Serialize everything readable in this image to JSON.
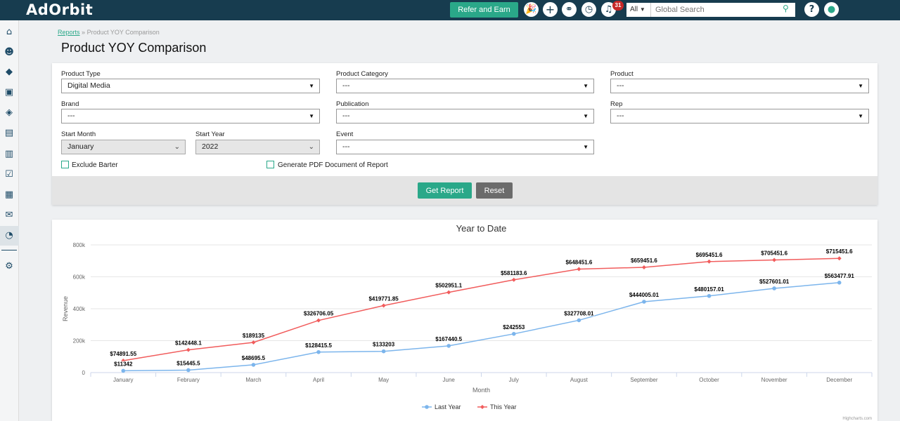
{
  "app": {
    "logo": "AdOrbit",
    "refer_label": "Refer and Earn",
    "notifications_count": "31",
    "search_scope": "All",
    "search_placeholder": "Global Search",
    "accent_color": "#2aa889",
    "header_color": "#173c4f"
  },
  "topbar_icons": [
    "party-icon",
    "plus-icon",
    "link-icon",
    "clock-icon",
    "bell-icon",
    "help-icon",
    "user-icon"
  ],
  "sidebar": {
    "items": [
      "home-icon",
      "contacts-icon",
      "handshake-icon",
      "media-icon",
      "tag-icon",
      "document-icon",
      "finance-icon",
      "clipboard-icon",
      "word-doc-icon",
      "mail-icon",
      "reports-icon",
      "settings-icon"
    ],
    "active": "reports-icon"
  },
  "breadcrumb": {
    "link": "Reports",
    "separator": "»",
    "current": "Product YOY Comparison"
  },
  "page_title": "Product YOY Comparison",
  "filters": {
    "product_type": {
      "label": "Product Type",
      "value": "Digital Media"
    },
    "product_category": {
      "label": "Product Category",
      "value": "---"
    },
    "product": {
      "label": "Product",
      "value": "---"
    },
    "brand": {
      "label": "Brand",
      "value": "---"
    },
    "publication": {
      "label": "Publication",
      "value": "---"
    },
    "rep": {
      "label": "Rep",
      "value": "---"
    },
    "start_month": {
      "label": "Start Month",
      "value": "January"
    },
    "start_year": {
      "label": "Start Year",
      "value": "2022"
    },
    "event": {
      "label": "Event",
      "value": "---"
    },
    "exclude_barter": {
      "label": "Exclude Barter",
      "checked": false
    },
    "generate_pdf": {
      "label": "Generate PDF Document of Report",
      "checked": false
    }
  },
  "buttons": {
    "get_report": "Get Report",
    "reset": "Reset"
  },
  "chart_data": {
    "type": "line",
    "title": "Year to Date",
    "xlabel": "Month",
    "ylabel": "Revenue",
    "categories": [
      "January",
      "February",
      "March",
      "April",
      "May",
      "June",
      "July",
      "August",
      "September",
      "October",
      "November",
      "December"
    ],
    "ylim": [
      0,
      800000
    ],
    "yticks": [
      0,
      200000,
      400000,
      600000,
      800000
    ],
    "ytick_labels": [
      "0",
      "200k",
      "400k",
      "600k",
      "800k"
    ],
    "grid": true,
    "legend_position": "bottom",
    "credits": "Highcharts.com",
    "series": [
      {
        "name": "Last Year",
        "color": "#7cb5ec",
        "values": [
          11342,
          15445.5,
          48695.5,
          128415.5,
          133203,
          167440.5,
          242553,
          327708.01,
          444005.01,
          480157.01,
          527601.01,
          563477.91
        ],
        "labels": [
          "$11342",
          "$15445.5",
          "$48695.5",
          "$128415.5",
          "$133203",
          "$167440.5",
          "$242553",
          "$327708.01",
          "$444005.01",
          "$480157.01",
          "$527601.01",
          "$563477.91"
        ]
      },
      {
        "name": "This Year",
        "color": "#f15c5c",
        "values": [
          74891.55,
          142448.1,
          189135,
          326706.05,
          419771.85,
          502951.1,
          581183.6,
          648451.6,
          659451.6,
          695451.6,
          705451.6,
          715451.6
        ],
        "labels": [
          "$74891.55",
          "$142448.1",
          "$189135",
          "$326706.05",
          "$419771.85",
          "$502951.1",
          "$581183.6",
          "$648451.6",
          "$659451.6",
          "$695451.6",
          "$705451.6",
          "$715451.6"
        ]
      }
    ]
  }
}
